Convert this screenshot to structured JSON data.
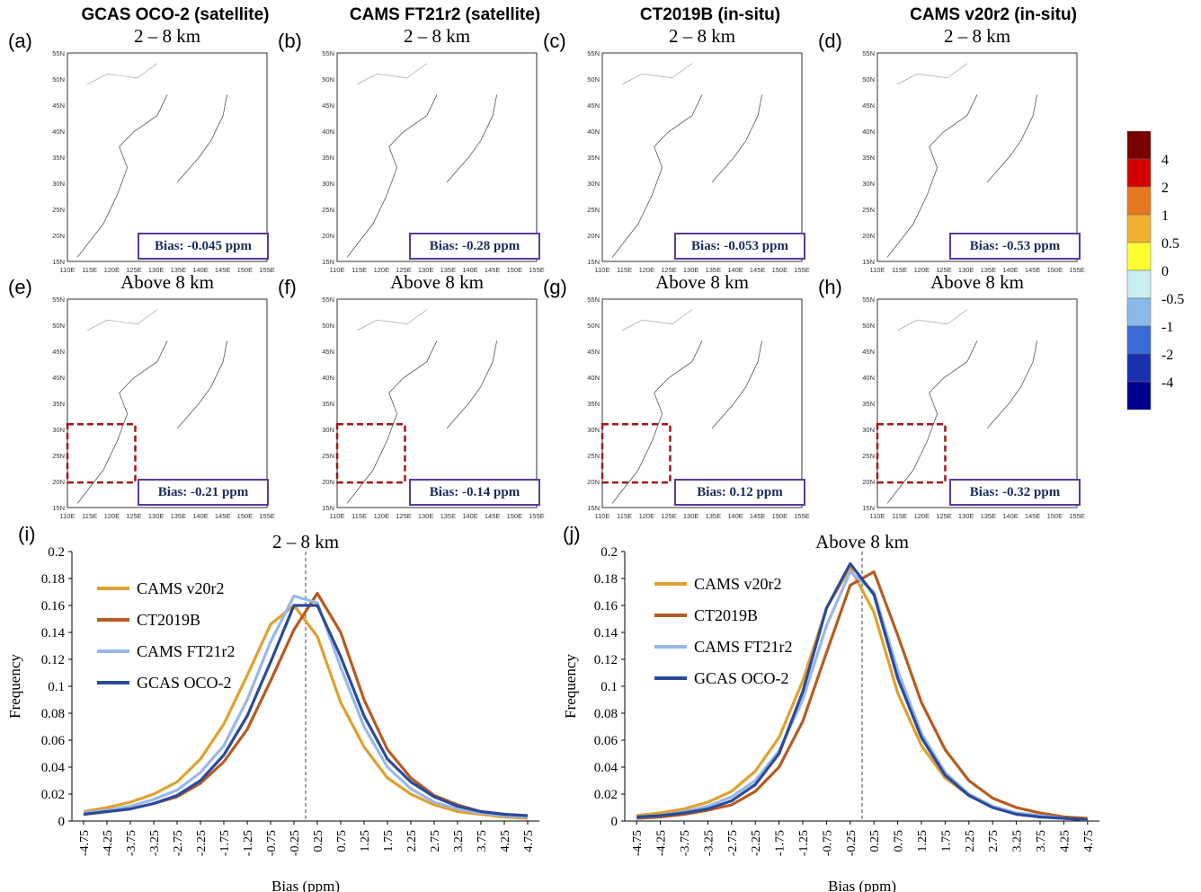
{
  "column_titles": [
    "GCAS OCO-2 (satellite)",
    "CAMS FT21r2 (satellite)",
    "CT2019B (in-situ)",
    "CAMS v20r2 (in-situ)"
  ],
  "colorbar": {
    "labels": [
      "4",
      "2",
      "1",
      "0.5",
      "0",
      "-0.5",
      "-1",
      "-2",
      "-4"
    ],
    "colors": [
      "#7a0000",
      "#d40000",
      "#e87820",
      "#f0b030",
      "#ffff33",
      "#c8eef0",
      "#8ab8e8",
      "#3a6ad8",
      "#1a30b0",
      "#000090"
    ]
  },
  "maps": {
    "lat_labels": [
      "55N",
      "50N",
      "45N",
      "40N",
      "35N",
      "30N",
      "25N",
      "20N",
      "15N"
    ],
    "lon_labels": [
      "110E",
      "115E",
      "120E",
      "125E",
      "130E",
      "135E",
      "140E",
      "145E",
      "150E",
      "155E"
    ],
    "panels": [
      {
        "label": "(a)",
        "title": "2 – 8 km",
        "bias": "Bias: -0.045 ppm",
        "layer": "low",
        "mode": 0
      },
      {
        "label": "(b)",
        "title": "2 – 8 km",
        "bias": "Bias: -0.28 ppm",
        "layer": "low",
        "mode": 1
      },
      {
        "label": "(c)",
        "title": "2 – 8 km",
        "bias": "Bias: -0.053 ppm",
        "layer": "low",
        "mode": 2
      },
      {
        "label": "(d)",
        "title": "2 – 8 km",
        "bias": "Bias: -0.53 ppm",
        "layer": "low",
        "mode": 3
      },
      {
        "label": "(e)",
        "title": "Above 8 km",
        "bias": "Bias: -0.21 ppm",
        "layer": "high",
        "mode": 0
      },
      {
        "label": "(f)",
        "title": "Above 8 km",
        "bias": "Bias: -0.14 ppm",
        "layer": "high",
        "mode": 1
      },
      {
        "label": "(g)",
        "title": "Above 8 km",
        "bias": "Bias: 0.12 ppm",
        "layer": "high",
        "mode": 2
      },
      {
        "label": "(h)",
        "title": "Above 8 km",
        "bias": "Bias: -0.32 ppm",
        "layer": "high",
        "mode": 3
      }
    ]
  },
  "chart_data": [
    {
      "type": "line",
      "panel_label": "(i)",
      "title": "2 – 8 km",
      "xlabel": "Bias (ppm)",
      "ylabel": "Frequency",
      "ylim": [
        0,
        0.2
      ],
      "yticks": [
        "0",
        "0.02",
        "0.04",
        "0.06",
        "0.08",
        "0.1",
        "0.12",
        "0.14",
        "0.16",
        "0.18",
        "0.2"
      ],
      "categories": [
        "-4.75",
        "-4.25",
        "-3.75",
        "-3.25",
        "-2.75",
        "-2.25",
        "-1.75",
        "-1.25",
        "-0.75",
        "-0.25",
        "0.25",
        "0.75",
        "1.25",
        "1.75",
        "2.25",
        "2.75",
        "3.25",
        "3.75",
        "4.25",
        "4.75"
      ],
      "series": [
        {
          "name": "CAMS v20r2",
          "color": "#e0a030",
          "values": [
            0.007,
            0.01,
            0.014,
            0.02,
            0.029,
            0.046,
            0.072,
            0.108,
            0.146,
            0.16,
            0.137,
            0.088,
            0.055,
            0.032,
            0.02,
            0.012,
            0.007,
            0.005,
            0.003,
            0.002
          ]
        },
        {
          "name": "CT2019B",
          "color": "#b85a20",
          "values": [
            0.005,
            0.007,
            0.009,
            0.013,
            0.018,
            0.028,
            0.044,
            0.068,
            0.104,
            0.142,
            0.169,
            0.14,
            0.09,
            0.053,
            0.032,
            0.019,
            0.012,
            0.007,
            0.005,
            0.003
          ]
        },
        {
          "name": "CAMS FT21r2",
          "color": "#98b8e8",
          "values": [
            0.006,
            0.008,
            0.011,
            0.016,
            0.023,
            0.036,
            0.056,
            0.09,
            0.133,
            0.167,
            0.162,
            0.114,
            0.07,
            0.04,
            0.024,
            0.014,
            0.009,
            0.006,
            0.004,
            0.003
          ]
        },
        {
          "name": "GCAS OCO-2",
          "color": "#2a4a9a",
          "values": [
            0.005,
            0.007,
            0.009,
            0.013,
            0.019,
            0.03,
            0.049,
            0.078,
            0.118,
            0.16,
            0.16,
            0.122,
            0.078,
            0.046,
            0.029,
            0.018,
            0.011,
            0.007,
            0.005,
            0.004
          ]
        }
      ],
      "legend_position": "top-left",
      "reference_line": "0"
    },
    {
      "type": "line",
      "panel_label": "(j)",
      "title": "Above 8 km",
      "xlabel": "Bias (ppm)",
      "ylabel": "Frequency",
      "ylim": [
        0,
        0.2
      ],
      "yticks": [
        "0",
        "0.02",
        "0.04",
        "0.06",
        "0.08",
        "0.1",
        "0.12",
        "0.14",
        "0.16",
        "0.18",
        "0.2"
      ],
      "categories": [
        "-4.75",
        "-4.25",
        "-3.75",
        "-3.25",
        "-2.75",
        "-2.25",
        "-1.75",
        "-1.25",
        "-0.75",
        "-0.25",
        "0.25",
        "0.75",
        "1.25",
        "1.75",
        "2.25",
        "2.75",
        "3.25",
        "3.75",
        "4.25",
        "4.75"
      ],
      "series": [
        {
          "name": "CAMS v20r2",
          "color": "#e0a030",
          "values": [
            0.004,
            0.006,
            0.009,
            0.014,
            0.022,
            0.037,
            0.062,
            0.104,
            0.158,
            0.188,
            0.155,
            0.095,
            0.056,
            0.032,
            0.019,
            0.011,
            0.006,
            0.004,
            0.002,
            0.001
          ]
        },
        {
          "name": "CT2019B",
          "color": "#b85a20",
          "values": [
            0.002,
            0.003,
            0.005,
            0.008,
            0.012,
            0.022,
            0.04,
            0.074,
            0.125,
            0.175,
            0.185,
            0.138,
            0.088,
            0.053,
            0.03,
            0.017,
            0.01,
            0.006,
            0.003,
            0.002
          ]
        },
        {
          "name": "CAMS FT21r2",
          "color": "#98b8e8",
          "values": [
            0.003,
            0.004,
            0.007,
            0.011,
            0.018,
            0.03,
            0.052,
            0.09,
            0.145,
            0.185,
            0.17,
            0.112,
            0.065,
            0.036,
            0.02,
            0.011,
            0.006,
            0.004,
            0.002,
            0.001
          ]
        },
        {
          "name": "GCAS OCO-2",
          "color": "#2a4a9a",
          "values": [
            0.003,
            0.004,
            0.006,
            0.009,
            0.015,
            0.027,
            0.05,
            0.096,
            0.158,
            0.191,
            0.168,
            0.106,
            0.062,
            0.034,
            0.019,
            0.01,
            0.005,
            0.003,
            0.002,
            0.001
          ]
        }
      ],
      "legend_position": "top-left",
      "reference_line": "0"
    }
  ]
}
